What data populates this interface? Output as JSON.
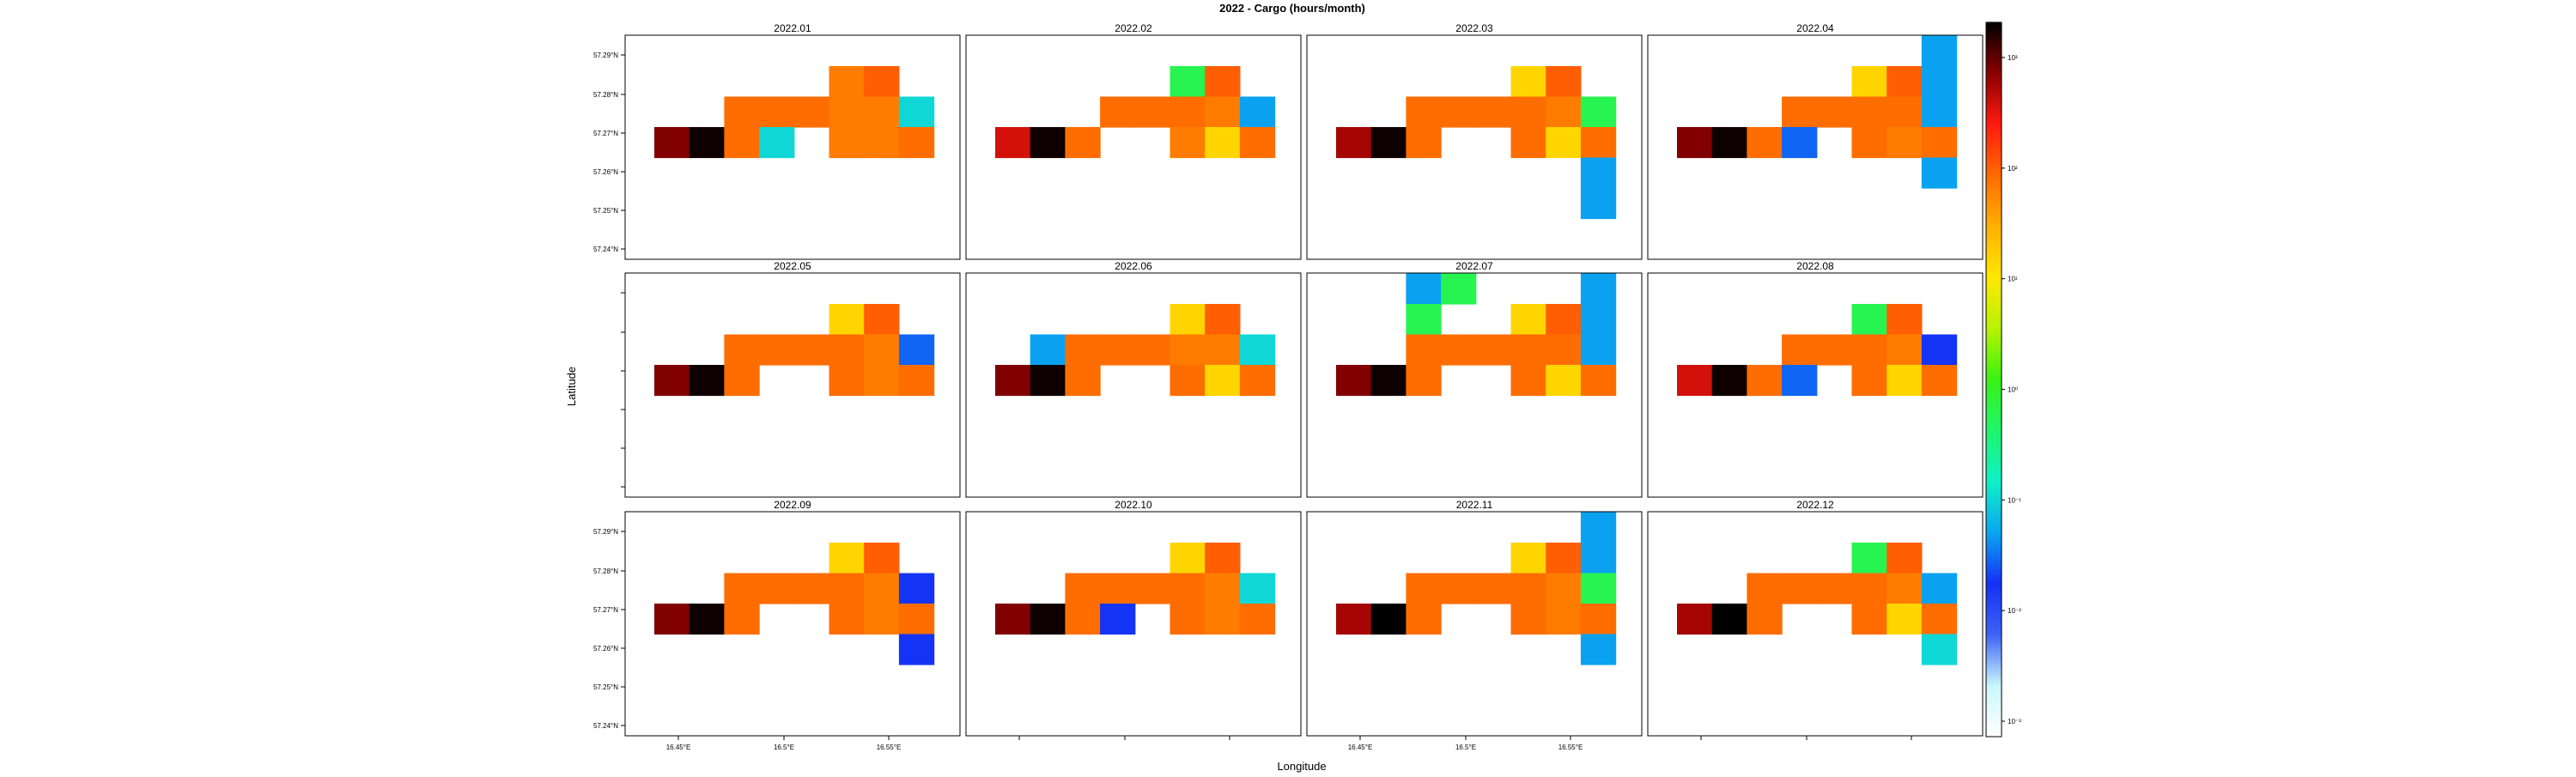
{
  "chart_data": {
    "type": "heatmap",
    "title": "2022 - Cargo (hours/month)",
    "xlabel": "Longitude",
    "ylabel": "Latitude",
    "x_tick_labels": [
      "16.45°E",
      "16.5°E",
      "16.55°E"
    ],
    "y_tick_labels": [
      "57.29°N",
      "57.28°N",
      "57.27°N",
      "57.26°N",
      "57.25°N",
      "57.24°N"
    ],
    "colorbar": {
      "scale": "log",
      "tick_labels": [
        "10⁻³",
        "10⁻²",
        "10⁻¹",
        "10⁰",
        "10¹",
        "10²",
        "10³"
      ],
      "colors": [
        "#ffffff",
        "#c9f6fb",
        "#3f63f5",
        "#1430f5",
        "#0aa6f0",
        "#10f0c8",
        "#1ff56b",
        "#39f212",
        "#b8f200",
        "#ffe800",
        "#ffb000",
        "#ff6a00",
        "#ff1a10",
        "#8b0000",
        "#000000"
      ]
    },
    "cell_grid": {
      "columns": 8,
      "rows": 5,
      "note": "columns west to east, rows north to south; values in hours/month"
    },
    "panels": [
      {
        "label": "2022.01",
        "cells": [
          [
            6,
            0,
            40
          ],
          [
            7,
            0,
            60
          ],
          [
            3,
            1,
            50
          ],
          [
            4,
            1,
            50
          ],
          [
            5,
            1,
            50
          ],
          [
            6,
            1,
            40
          ],
          [
            7,
            1,
            40
          ],
          [
            8,
            1,
            0.1
          ],
          [
            1,
            2,
            400
          ],
          [
            2,
            2,
            900
          ],
          [
            3,
            2,
            50
          ],
          [
            4,
            2,
            0.1
          ],
          [
            6,
            2,
            40
          ],
          [
            7,
            2,
            40
          ],
          [
            8,
            2,
            50
          ]
        ]
      },
      {
        "label": "2022.02",
        "cells": [
          [
            6,
            0,
            0.5
          ],
          [
            7,
            0,
            60
          ],
          [
            4,
            1,
            50
          ],
          [
            5,
            1,
            50
          ],
          [
            6,
            1,
            50
          ],
          [
            7,
            1,
            40
          ],
          [
            8,
            1,
            0.05
          ],
          [
            1,
            2,
            200
          ],
          [
            2,
            2,
            900
          ],
          [
            3,
            2,
            50
          ],
          [
            6,
            2,
            40
          ],
          [
            7,
            2,
            10
          ],
          [
            8,
            2,
            50
          ]
        ]
      },
      {
        "label": "2022.03",
        "cells": [
          [
            6,
            0,
            10
          ],
          [
            7,
            0,
            60
          ],
          [
            3,
            1,
            50
          ],
          [
            4,
            1,
            50
          ],
          [
            5,
            1,
            50
          ],
          [
            6,
            1,
            50
          ],
          [
            7,
            1,
            40
          ],
          [
            8,
            1,
            0.5
          ],
          [
            1,
            2,
            300
          ],
          [
            2,
            2,
            900
          ],
          [
            3,
            2,
            50
          ],
          [
            6,
            2,
            50
          ],
          [
            7,
            2,
            10
          ],
          [
            8,
            2,
            50
          ],
          [
            8,
            3,
            0.05
          ],
          [
            8,
            4,
            0.05
          ]
        ]
      },
      {
        "label": "2022.04",
        "cells": [
          [
            8,
            -1,
            0.05
          ],
          [
            6,
            0,
            10
          ],
          [
            7,
            0,
            60
          ],
          [
            8,
            0,
            0.05
          ],
          [
            4,
            1,
            50
          ],
          [
            5,
            1,
            50
          ],
          [
            6,
            1,
            50
          ],
          [
            7,
            1,
            50
          ],
          [
            8,
            1,
            0.05
          ],
          [
            1,
            2,
            400
          ],
          [
            2,
            2,
            900
          ],
          [
            3,
            2,
            50
          ],
          [
            4,
            2,
            0.03
          ],
          [
            6,
            2,
            50
          ],
          [
            7,
            2,
            40
          ],
          [
            8,
            2,
            50
          ],
          [
            8,
            3,
            0.05
          ]
        ]
      },
      {
        "label": "2022.05",
        "cells": [
          [
            6,
            0,
            10
          ],
          [
            7,
            0,
            60
          ],
          [
            3,
            1,
            50
          ],
          [
            4,
            1,
            50
          ],
          [
            5,
            1,
            50
          ],
          [
            6,
            1,
            50
          ],
          [
            7,
            1,
            40
          ],
          [
            8,
            1,
            0.03
          ],
          [
            1,
            2,
            400
          ],
          [
            2,
            2,
            900
          ],
          [
            3,
            2,
            50
          ],
          [
            6,
            2,
            50
          ],
          [
            7,
            2,
            40
          ],
          [
            8,
            2,
            50
          ]
        ]
      },
      {
        "label": "2022.06",
        "cells": [
          [
            6,
            0,
            10
          ],
          [
            7,
            0,
            60
          ],
          [
            2,
            1,
            0.05
          ],
          [
            3,
            1,
            50
          ],
          [
            4,
            1,
            50
          ],
          [
            5,
            1,
            50
          ],
          [
            6,
            1,
            40
          ],
          [
            7,
            1,
            40
          ],
          [
            8,
            1,
            0.1
          ],
          [
            1,
            2,
            400
          ],
          [
            2,
            2,
            900
          ],
          [
            3,
            2,
            50
          ],
          [
            6,
            2,
            50
          ],
          [
            7,
            2,
            10
          ],
          [
            8,
            2,
            50
          ]
        ]
      },
      {
        "label": "2022.07",
        "cells": [
          [
            3,
            -1,
            0.05
          ],
          [
            4,
            -1,
            0.5
          ],
          [
            8,
            -1,
            0.05
          ],
          [
            3,
            0,
            0.5
          ],
          [
            6,
            0,
            10
          ],
          [
            7,
            0,
            60
          ],
          [
            8,
            0,
            0.05
          ],
          [
            3,
            1,
            50
          ],
          [
            4,
            1,
            50
          ],
          [
            5,
            1,
            50
          ],
          [
            6,
            1,
            50
          ],
          [
            7,
            1,
            50
          ],
          [
            8,
            1,
            0.05
          ],
          [
            1,
            2,
            400
          ],
          [
            2,
            2,
            900
          ],
          [
            3,
            2,
            50
          ],
          [
            6,
            2,
            50
          ],
          [
            7,
            2,
            10
          ],
          [
            8,
            2,
            50
          ]
        ]
      },
      {
        "label": "2022.08",
        "cells": [
          [
            6,
            0,
            0.5
          ],
          [
            7,
            0,
            60
          ],
          [
            4,
            1,
            50
          ],
          [
            5,
            1,
            50
          ],
          [
            6,
            1,
            50
          ],
          [
            7,
            1,
            40
          ],
          [
            8,
            1,
            0.02
          ],
          [
            1,
            2,
            200
          ],
          [
            2,
            2,
            900
          ],
          [
            3,
            2,
            50
          ],
          [
            4,
            2,
            0.03
          ],
          [
            6,
            2,
            50
          ],
          [
            7,
            2,
            10
          ],
          [
            8,
            2,
            50
          ]
        ]
      },
      {
        "label": "2022.09",
        "cells": [
          [
            6,
            0,
            10
          ],
          [
            7,
            0,
            60
          ],
          [
            3,
            1,
            50
          ],
          [
            4,
            1,
            50
          ],
          [
            5,
            1,
            50
          ],
          [
            6,
            1,
            50
          ],
          [
            7,
            1,
            40
          ],
          [
            8,
            1,
            0.02
          ],
          [
            1,
            2,
            400
          ],
          [
            2,
            2,
            900
          ],
          [
            3,
            2,
            50
          ],
          [
            6,
            2,
            50
          ],
          [
            7,
            2,
            40
          ],
          [
            8,
            2,
            50
          ],
          [
            8,
            3,
            0.02
          ]
        ]
      },
      {
        "label": "2022.10",
        "cells": [
          [
            6,
            0,
            10
          ],
          [
            7,
            0,
            60
          ],
          [
            3,
            1,
            50
          ],
          [
            4,
            1,
            50
          ],
          [
            5,
            1,
            50
          ],
          [
            6,
            1,
            50
          ],
          [
            7,
            1,
            40
          ],
          [
            8,
            1,
            0.1
          ],
          [
            1,
            2,
            400
          ],
          [
            2,
            2,
            900
          ],
          [
            3,
            2,
            50
          ],
          [
            4,
            2,
            0.02
          ],
          [
            6,
            2,
            50
          ],
          [
            7,
            2,
            40
          ],
          [
            8,
            2,
            50
          ]
        ]
      },
      {
        "label": "2022.11",
        "cells": [
          [
            8,
            -1,
            0.05
          ],
          [
            6,
            0,
            10
          ],
          [
            7,
            0,
            60
          ],
          [
            8,
            0,
            0.05
          ],
          [
            3,
            1,
            50
          ],
          [
            4,
            1,
            50
          ],
          [
            5,
            1,
            50
          ],
          [
            6,
            1,
            50
          ],
          [
            7,
            1,
            40
          ],
          [
            8,
            1,
            0.5
          ],
          [
            1,
            2,
            300
          ],
          [
            2,
            2,
            1000
          ],
          [
            3,
            2,
            50
          ],
          [
            6,
            2,
            50
          ],
          [
            7,
            2,
            40
          ],
          [
            8,
            2,
            50
          ],
          [
            8,
            3,
            0.05
          ]
        ]
      },
      {
        "label": "2022.12",
        "cells": [
          [
            6,
            0,
            0.5
          ],
          [
            7,
            0,
            60
          ],
          [
            3,
            1,
            50
          ],
          [
            4,
            1,
            50
          ],
          [
            5,
            1,
            50
          ],
          [
            6,
            1,
            50
          ],
          [
            7,
            1,
            40
          ],
          [
            8,
            1,
            0.05
          ],
          [
            1,
            2,
            300
          ],
          [
            2,
            2,
            1000
          ],
          [
            3,
            2,
            50
          ],
          [
            6,
            2,
            50
          ],
          [
            7,
            2,
            10
          ],
          [
            8,
            2,
            50
          ],
          [
            8,
            3,
            0.1
          ]
        ]
      }
    ]
  }
}
